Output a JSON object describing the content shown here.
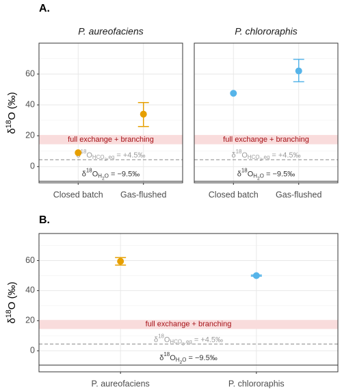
{
  "chart_data": [
    {
      "type": "errorbar-point",
      "panel_label": "A.",
      "title": "P. aureofaciens",
      "ylabel": [
        "δ",
        "18",
        "O (‰)"
      ],
      "categories": [
        "Closed batch",
        "Gas-flushed"
      ],
      "values": [
        9,
        34
      ],
      "error_low": [
        null,
        26
      ],
      "error_high": [
        null,
        41.5
      ],
      "colors": [
        "#E69F00",
        "#E69F00"
      ],
      "ylim": [
        -10.5,
        80
      ],
      "yticks": [
        0,
        20,
        40,
        60
      ],
      "grid": true,
      "band": {
        "range": [
          14.5,
          20.5
        ],
        "label": "full exchange + branching",
        "color": "#f9dcdc",
        "label_color": "#a50f15"
      },
      "hlines": [
        {
          "value": 4.5,
          "style": "dashed",
          "color": "#888888",
          "label": [
            "δ",
            "18",
            "O",
            "HCO",
            "3",
            ",eq",
            " = +4.5‰"
          ],
          "label_color": "#9a9a9a"
        },
        {
          "value": -9.5,
          "style": "solid",
          "color": "#333333",
          "label": [
            "δ",
            "18",
            "O",
            "H",
            "2",
            "O",
            " = −9.5‰"
          ],
          "label_color": "#333333"
        }
      ]
    },
    {
      "type": "errorbar-point",
      "title": "P. chlororaphis",
      "ytick_labels": false,
      "categories": [
        "Closed batch",
        "Gas-flushed"
      ],
      "values": [
        47.5,
        62
      ],
      "error_low": [
        null,
        55
      ],
      "error_high": [
        null,
        69.5
      ],
      "colors": [
        "#56B4E9",
        "#56B4E9"
      ],
      "ylim": [
        -10.5,
        80
      ],
      "yticks": [
        0,
        20,
        40,
        60
      ],
      "grid": true,
      "band": {
        "range": [
          14.5,
          20.5
        ],
        "label": "full exchange + branching",
        "color": "#f9dcdc",
        "label_color": "#a50f15"
      },
      "hlines": [
        {
          "value": 4.5,
          "style": "dashed",
          "color": "#888888",
          "label": [
            "δ",
            "18",
            "O",
            "HCO",
            "3",
            ",eq",
            " = +4.5‰"
          ],
          "label_color": "#9a9a9a"
        },
        {
          "value": -9.5,
          "style": "solid",
          "color": "#333333",
          "label": [
            "δ",
            "18",
            "O",
            "H",
            "2",
            "O",
            " = −9.5‰"
          ],
          "label_color": "#333333"
        }
      ]
    },
    {
      "type": "errorbar-point",
      "panel_label": "B.",
      "ylabel": [
        "δ",
        "18",
        "O (‰)"
      ],
      "categories": [
        "P. aureofaciens",
        "P. chlororaphis"
      ],
      "values": [
        59.5,
        50
      ],
      "error_low": [
        57,
        49.6
      ],
      "error_high": [
        62,
        50.4
      ],
      "colors": [
        "#E69F00",
        "#56B4E9"
      ],
      "ylim": [
        -14,
        78
      ],
      "yticks": [
        0,
        20,
        40,
        60
      ],
      "grid": true,
      "band": {
        "range": [
          14.5,
          20.5
        ],
        "label": "full exchange + branching",
        "color": "#f9dcdc",
        "label_color": "#a50f15"
      },
      "hlines": [
        {
          "value": 4.5,
          "style": "dashed",
          "color": "#888888",
          "label": [
            "δ",
            "18",
            "O",
            "HCO",
            "3",
            ",eq",
            " = +4.5‰"
          ],
          "label_color": "#9a9a9a"
        },
        {
          "value": -9.5,
          "style": "solid",
          "color": "#333333",
          "label": [
            "δ",
            "18",
            "O",
            "H",
            "2",
            "O",
            " = −9.5‰"
          ],
          "label_color": "#333333"
        }
      ]
    }
  ]
}
